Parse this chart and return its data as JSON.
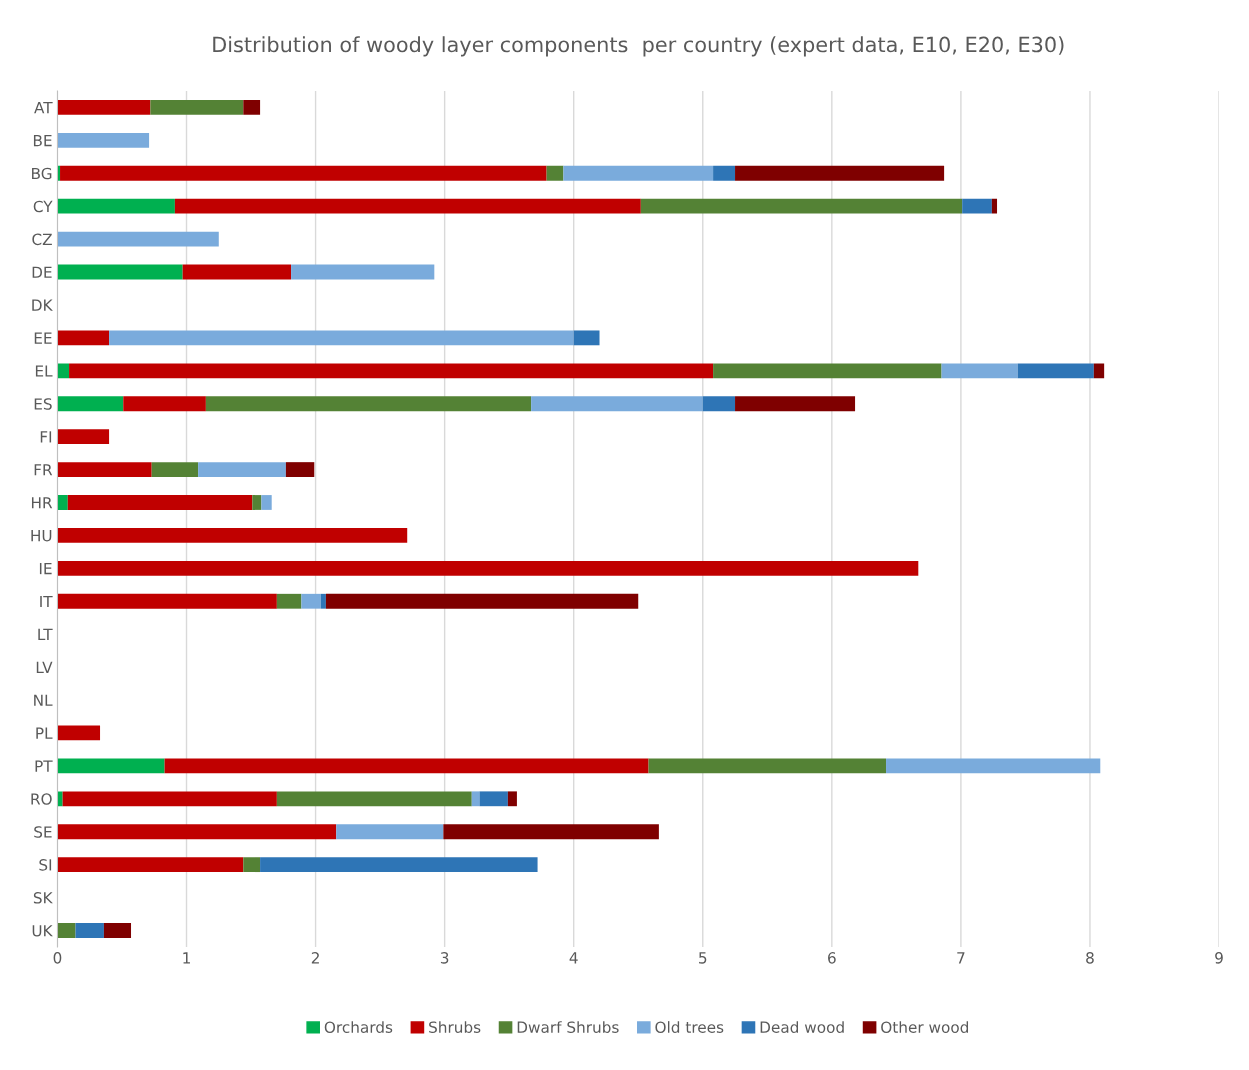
{
  "chart_data": {
    "type": "bar",
    "orientation": "horizontal",
    "stacked": true,
    "title": "Distribution of woody layer components  per country (expert data, E10, E20, E30)",
    "categories": [
      "AT",
      "BE",
      "BG",
      "CY",
      "CZ",
      "DE",
      "DK",
      "EE",
      "EL",
      "ES",
      "FI",
      "FR",
      "HR",
      "HU",
      "IE",
      "IT",
      "LT",
      "LV",
      "NL",
      "PL",
      "PT",
      "RO",
      "SE",
      "SI",
      "SK",
      "UK"
    ],
    "series": [
      {
        "name": "Orchards",
        "color": "#00b050",
        "values": [
          null,
          null,
          0.02,
          0.91,
          null,
          0.97,
          null,
          null,
          0.09,
          0.51,
          null,
          null,
          0.08,
          null,
          null,
          null,
          null,
          null,
          null,
          null,
          0.83,
          0.04,
          null,
          null,
          null,
          null
        ]
      },
      {
        "name": "Shrubs",
        "color": "#c00000",
        "values": [
          0.72,
          null,
          3.77,
          3.61,
          null,
          0.84,
          null,
          0.4,
          4.99,
          0.64,
          0.4,
          0.73,
          1.43,
          2.71,
          6.67,
          1.7,
          null,
          null,
          null,
          0.33,
          3.75,
          1.66,
          2.16,
          1.44,
          null,
          null
        ]
      },
      {
        "name": "Dwarf Shrubs",
        "color": "#548235",
        "values": [
          0.72,
          null,
          0.13,
          2.49,
          null,
          null,
          null,
          null,
          1.77,
          2.52,
          null,
          0.36,
          0.07,
          null,
          null,
          0.19,
          null,
          null,
          null,
          null,
          1.84,
          1.51,
          null,
          0.13,
          null,
          0.14
        ]
      },
      {
        "name": "Old trees",
        "color": "#7aabdc",
        "values": [
          null,
          0.71,
          1.16,
          null,
          1.25,
          1.11,
          null,
          3.6,
          0.59,
          1.33,
          null,
          0.68,
          0.08,
          null,
          null,
          0.15,
          null,
          null,
          null,
          null,
          1.66,
          0.06,
          0.83,
          null,
          null,
          null
        ]
      },
      {
        "name": "Dead wood",
        "color": "#2e75b6",
        "values": [
          null,
          null,
          0.17,
          0.23,
          null,
          null,
          null,
          0.2,
          0.59,
          0.25,
          null,
          null,
          null,
          null,
          null,
          0.04,
          null,
          null,
          null,
          null,
          null,
          0.22,
          null,
          2.15,
          null,
          0.22
        ]
      },
      {
        "name": "Other wood",
        "color": "#7f0000",
        "values": [
          0.13,
          null,
          1.62,
          0.04,
          null,
          null,
          null,
          null,
          0.08,
          0.93,
          null,
          0.22,
          null,
          null,
          null,
          2.42,
          null,
          null,
          null,
          null,
          null,
          0.07,
          1.67,
          null,
          null,
          0.21
        ]
      }
    ],
    "xlim": [
      0,
      9
    ],
    "xticks": [
      0,
      1,
      2,
      3,
      4,
      5,
      6,
      7,
      8,
      9
    ],
    "grid": "x",
    "legend": "bottom"
  }
}
